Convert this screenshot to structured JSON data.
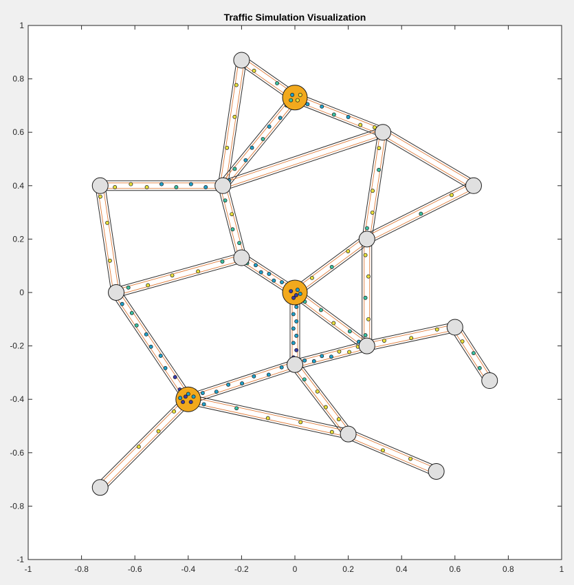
{
  "chart_data": {
    "type": "scatter",
    "title": "Traffic Simulation Visualization",
    "xlabel": "",
    "ylabel": "",
    "xlim": [
      -1,
      1
    ],
    "ylim": [
      -1,
      1
    ],
    "x_ticks": [
      -1,
      -0.8,
      -0.6,
      -0.4,
      -0.2,
      0,
      0.2,
      0.4,
      0.6,
      0.8,
      1
    ],
    "y_ticks": [
      -1,
      -0.8,
      -0.6,
      -0.4,
      -0.2,
      0,
      0.2,
      0.4,
      0.6,
      0.8,
      1
    ],
    "grid": false,
    "colors": {
      "node_normal": "#e0e0e0",
      "node_highlight": "#f2a91d",
      "road_outline": "#2b2b2b",
      "lane_inner": "#e07b39",
      "vehicle_slow": "#3a3aa8",
      "vehicle_mid": "#21a0c8",
      "vehicle_medium": "#3cc0a0",
      "vehicle_fast": "#e8df3c"
    },
    "nodes": [
      {
        "x": -0.2,
        "y": 0.87,
        "highlight": false
      },
      {
        "x": 0.0,
        "y": 0.73,
        "highlight": true
      },
      {
        "x": 0.33,
        "y": 0.6,
        "highlight": false
      },
      {
        "x": -0.73,
        "y": 0.4,
        "highlight": false
      },
      {
        "x": -0.27,
        "y": 0.4,
        "highlight": false
      },
      {
        "x": 0.67,
        "y": 0.4,
        "highlight": false
      },
      {
        "x": 0.27,
        "y": 0.2,
        "highlight": false
      },
      {
        "x": -0.2,
        "y": 0.13,
        "highlight": false
      },
      {
        "x": -0.67,
        "y": 0.0,
        "highlight": false
      },
      {
        "x": 0.0,
        "y": 0.0,
        "highlight": true
      },
      {
        "x": 0.6,
        "y": -0.13,
        "highlight": false
      },
      {
        "x": 0.27,
        "y": -0.2,
        "highlight": false
      },
      {
        "x": 0.0,
        "y": -0.27,
        "highlight": false
      },
      {
        "x": 0.73,
        "y": -0.33,
        "highlight": false
      },
      {
        "x": -0.4,
        "y": -0.4,
        "highlight": true
      },
      {
        "x": 0.2,
        "y": -0.53,
        "highlight": false
      },
      {
        "x": 0.53,
        "y": -0.67,
        "highlight": false
      },
      {
        "x": -0.73,
        "y": -0.73,
        "highlight": false
      }
    ],
    "edges": [
      [
        0,
        1
      ],
      [
        0,
        4
      ],
      [
        1,
        2
      ],
      [
        1,
        4
      ],
      [
        2,
        4
      ],
      [
        2,
        5
      ],
      [
        2,
        6
      ],
      [
        3,
        4
      ],
      [
        3,
        8
      ],
      [
        4,
        7
      ],
      [
        5,
        6
      ],
      [
        6,
        9
      ],
      [
        6,
        11
      ],
      [
        7,
        8
      ],
      [
        7,
        9
      ],
      [
        8,
        14
      ],
      [
        9,
        11
      ],
      [
        9,
        12
      ],
      [
        10,
        11
      ],
      [
        10,
        13
      ],
      [
        11,
        12
      ],
      [
        12,
        14
      ],
      [
        12,
        15
      ],
      [
        14,
        15
      ],
      [
        14,
        17
      ],
      [
        15,
        16
      ]
    ],
    "vehicles": [
      {
        "edge": 0,
        "t": [
          0.25,
          0.65
        ],
        "c": [
          "fast",
          "medium"
        ]
      },
      {
        "edge": 1,
        "t": [
          0.2,
          0.45,
          0.7
        ],
        "c": [
          "fast",
          "fast",
          "fast"
        ]
      },
      {
        "edge": 2,
        "t": [
          0.15,
          0.3,
          0.45,
          0.6,
          0.75,
          0.9
        ],
        "c": [
          "mid",
          "mid",
          "medium",
          "mid",
          "fast",
          "fast"
        ]
      },
      {
        "edge": 3,
        "t": [
          0.1,
          0.22,
          0.34,
          0.46,
          0.58,
          0.7,
          0.82,
          0.93
        ],
        "c": [
          "mid",
          "mid",
          "mid",
          "medium",
          "mid",
          "mid",
          "medium",
          "mid"
        ]
      },
      {
        "edge": 6,
        "t": [
          0.15,
          0.35,
          0.55,
          0.75,
          0.9
        ],
        "c": [
          "fast",
          "medium",
          "fast",
          "fast",
          "medium"
        ]
      },
      {
        "edge": 7,
        "t": [
          0.12,
          0.25,
          0.38,
          0.5,
          0.62,
          0.74,
          0.86,
          0.95
        ],
        "c": [
          "fast",
          "fast",
          "fast",
          "mid",
          "medium",
          "mid",
          "mid",
          "mid"
        ]
      },
      {
        "edge": 8,
        "t": [
          0.1,
          0.35,
          0.7
        ],
        "c": [
          "fast",
          "fast",
          "fast"
        ]
      },
      {
        "edge": 9,
        "t": [
          0.2,
          0.4,
          0.6,
          0.8
        ],
        "c": [
          "medium",
          "fast",
          "medium",
          "medium"
        ]
      },
      {
        "edge": 10,
        "t": [
          0.2,
          0.5
        ],
        "c": [
          "fast",
          "medium"
        ]
      },
      {
        "edge": 11,
        "t": [
          0.25,
          0.5,
          0.75
        ],
        "c": [
          "fast",
          "medium",
          "fast"
        ]
      },
      {
        "edge": 12,
        "t": [
          0.15,
          0.35,
          0.55,
          0.75,
          0.9
        ],
        "c": [
          "fast",
          "fast",
          "medium",
          "fast",
          "medium"
        ]
      },
      {
        "edge": 13,
        "t": [
          0.15,
          0.35,
          0.55,
          0.75,
          0.9
        ],
        "c": [
          "medium",
          "fast",
          "fast",
          "fast",
          "medium"
        ]
      },
      {
        "edge": 14,
        "t": [
          0.12,
          0.25,
          0.38,
          0.5,
          0.62,
          0.74,
          0.86,
          0.95
        ],
        "c": [
          "medium",
          "mid",
          "mid",
          "mid",
          "mid",
          "mid",
          "slow",
          "slow"
        ]
      },
      {
        "edge": 15,
        "t": [
          0.1,
          0.2,
          0.3,
          0.4,
          0.5,
          0.6,
          0.7,
          0.8,
          0.9
        ],
        "c": [
          "mid",
          "medium",
          "medium",
          "mid",
          "mid",
          "mid",
          "mid",
          "slow",
          "slow"
        ]
      },
      {
        "edge": 16,
        "t": [
          0.15,
          0.35,
          0.55,
          0.75,
          0.9
        ],
        "c": [
          "medium",
          "medium",
          "fast",
          "medium",
          "mid"
        ]
      },
      {
        "edge": 17,
        "t": [
          0.1,
          0.2,
          0.3,
          0.4,
          0.5,
          0.6,
          0.7,
          0.8,
          0.9
        ],
        "c": [
          "mid",
          "mid",
          "mid",
          "mid",
          "mid",
          "mid",
          "mid",
          "slow",
          "slow"
        ]
      },
      {
        "edge": 18,
        "t": [
          0.2,
          0.5,
          0.8
        ],
        "c": [
          "fast",
          "fast",
          "fast"
        ]
      },
      {
        "edge": 19,
        "t": [
          0.25,
          0.5,
          0.75
        ],
        "c": [
          "fast",
          "medium",
          "medium"
        ]
      },
      {
        "edge": 20,
        "t": [
          0.12,
          0.25,
          0.38,
          0.5,
          0.62,
          0.74,
          0.86,
          0.95
        ],
        "c": [
          "fast",
          "fast",
          "fast",
          "mid",
          "mid",
          "mid",
          "mid",
          "slow"
        ]
      },
      {
        "edge": 21,
        "t": [
          0.12,
          0.25,
          0.38,
          0.5,
          0.62,
          0.74,
          0.86,
          0.95
        ],
        "c": [
          "mid",
          "mid",
          "mid",
          "mid",
          "mid",
          "mid",
          "mid",
          "slow"
        ]
      },
      {
        "edge": 22,
        "t": [
          0.2,
          0.4,
          0.6,
          0.8
        ],
        "c": [
          "medium",
          "fast",
          "fast",
          "fast"
        ]
      },
      {
        "edge": 23,
        "t": [
          0.1,
          0.3,
          0.5,
          0.7,
          0.9
        ],
        "c": [
          "mid",
          "medium",
          "fast",
          "fast",
          "fast"
        ]
      },
      {
        "edge": 24,
        "t": [
          0.15,
          0.35,
          0.55
        ],
        "c": [
          "fast",
          "fast",
          "fast"
        ]
      },
      {
        "edge": 25,
        "t": [
          0.4,
          0.7
        ],
        "c": [
          "fast",
          "fast"
        ]
      }
    ]
  }
}
